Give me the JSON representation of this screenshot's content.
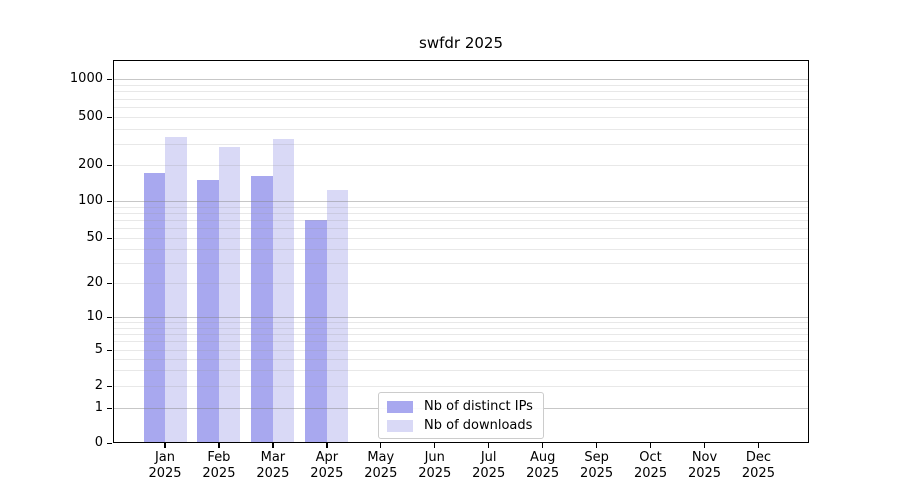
{
  "chart_data": {
    "type": "bar",
    "title": "swfdr 2025",
    "categories": [
      "Jan",
      "Feb",
      "Mar",
      "Apr",
      "May",
      "Jun",
      "Jul",
      "Aug",
      "Sep",
      "Oct",
      "Nov",
      "Dec"
    ],
    "category_year": "2025",
    "series": [
      {
        "name": "Nb of distinct IPs",
        "color": "#a8a8ef",
        "values": [
          170,
          150,
          162,
          70,
          null,
          null,
          null,
          null,
          null,
          null,
          null,
          null
        ]
      },
      {
        "name": "Nb of downloads",
        "color": "#d9d9f6",
        "values": [
          340,
          280,
          330,
          123,
          null,
          null,
          null,
          null,
          null,
          null,
          null,
          null
        ]
      }
    ],
    "y_ticks": [
      0,
      1,
      2,
      5,
      10,
      20,
      50,
      100,
      200,
      500,
      1000
    ],
    "y_scale": "log-like",
    "ylim_labels": [
      0,
      1000
    ],
    "grid": true,
    "legend_position": "lower-center",
    "axis_color": "#000000",
    "grid_major_color": "#c9c9c9",
    "grid_minor_color": "#ececec"
  }
}
